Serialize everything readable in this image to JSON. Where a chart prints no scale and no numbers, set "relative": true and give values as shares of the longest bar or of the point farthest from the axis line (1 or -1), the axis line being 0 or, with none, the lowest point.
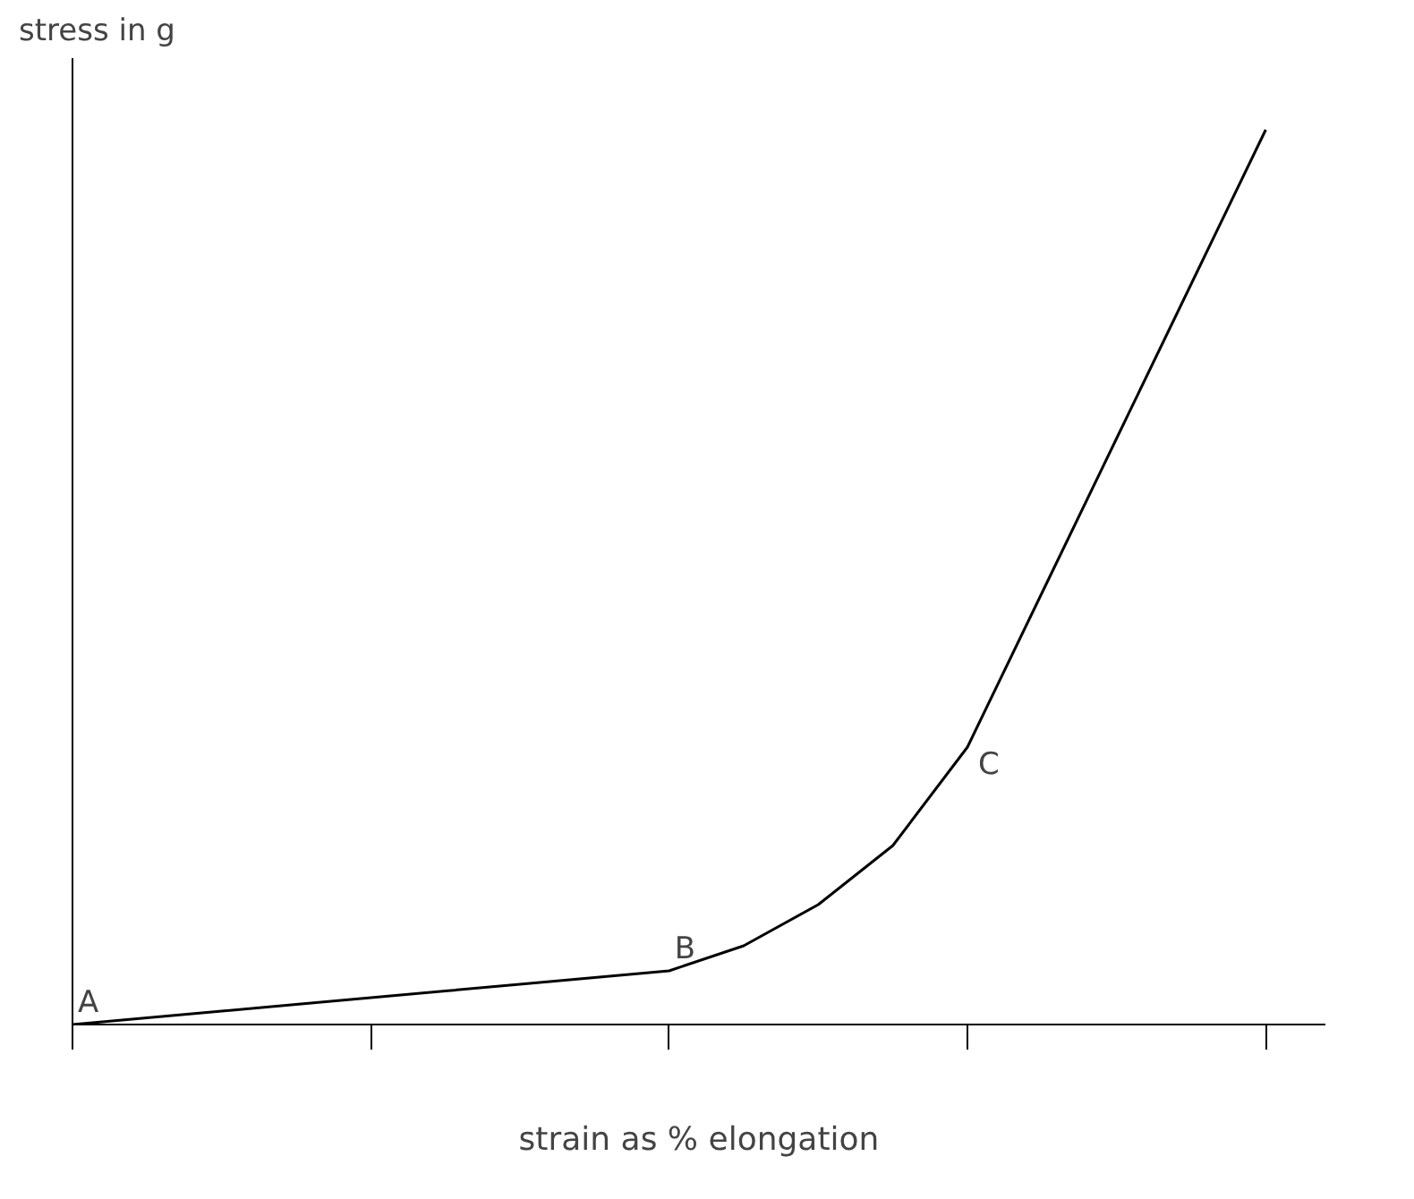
{
  "chart_data": {
    "type": "line",
    "relative": true,
    "ylabel": "stress in g",
    "xlabel": "strain as % elongation",
    "categories": [
      null,
      null,
      null,
      null,
      null,
      null,
      null,
      null,
      null,
      null,
      null,
      null,
      null,
      null,
      null,
      null,
      null
    ],
    "series": [
      {
        "color": "#000000",
        "values": [
          0,
          0.0075,
          0.015,
          0.0225,
          0.03,
          0.0375,
          0.045,
          0.0525,
          0.06,
          0.088,
          0.134,
          0.2,
          0.31,
          0.4825,
          0.655,
          0.8275,
          1
        ]
      }
    ],
    "annotations": [
      {
        "text": "A",
        "y": 0
      },
      {
        "text": "B",
        "y": 0.06
      },
      "C"
    ],
    "grid": false
  }
}
